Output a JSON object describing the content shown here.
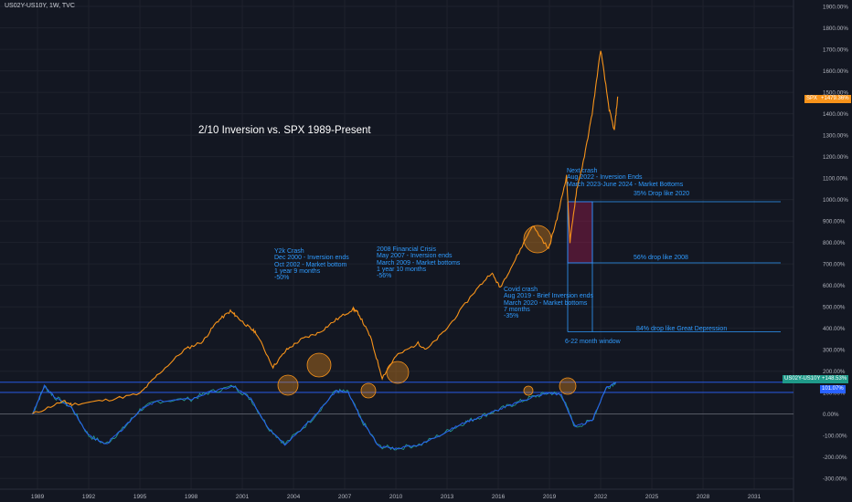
{
  "symbol_title": "US02Y-US10Y, 1W, TVC",
  "chart_title": "2/10 Inversion vs. SPX 1989-Present",
  "colors": {
    "background": "#131722",
    "spx": "#f7931a",
    "spread": "#2962ff",
    "annotation": "#2f9bff",
    "highlight": "#f7931a"
  },
  "badges": {
    "spx_label": "SPX",
    "spx_value": "+1479.36%",
    "spread_label": "US02Y-US10Y",
    "spread_value": "+148.53%",
    "level_value": "101.07%"
  },
  "annotations": {
    "y2k": [
      "Y2k Crash",
      "Dec 2000 - Inversion ends",
      "Oct 2002 - Market bottom",
      "1 year 9 months",
      "-50%"
    ],
    "gfc": [
      "2008 Financial Crisis",
      "May 2007 - Inversion ends",
      "March 2009 - Market bottoms",
      "1 year 10 months",
      "-56%"
    ],
    "covid": [
      "Covid crash",
      "Aug 2019 - Brief Inversion ends",
      "March 2020 - Market bottoms",
      "7 months",
      "-35%"
    ],
    "next": [
      "Next crash",
      "Aug 2022 - Inversion Ends",
      "March 2023-June 2024 - Market Bottoms"
    ],
    "drop35": "35% Drop like 2020",
    "drop56": "56% drop like 2008",
    "drop84": "84% drop like Great Depression",
    "window": "6-22 month window"
  },
  "chart_data": {
    "type": "line",
    "title": "2/10 Inversion vs. SPX 1989-Present",
    "xlabel": "",
    "ylabel": "",
    "x_ticks": [
      "1989",
      "1992",
      "1995",
      "1998",
      "2001",
      "2004",
      "2007",
      "2010",
      "2013",
      "2016",
      "2019",
      "2022",
      "2025",
      "2028",
      "2031"
    ],
    "y_ticks": [
      "1900.00%",
      "1800.00%",
      "1700.00%",
      "1600.00%",
      "1500.00%",
      "1400.00%",
      "1300.00%",
      "1200.00%",
      "1100.00%",
      "1000.00%",
      "900.00%",
      "800.00%",
      "700.00%",
      "600.00%",
      "500.00%",
      "400.00%",
      "300.00%",
      "200.00%",
      "100.00%",
      "0.00%",
      "-100.00%",
      "-200.00%",
      "-300.00%"
    ],
    "ylim": [
      -350,
      1930
    ],
    "xlim": [
      1986.8,
      2033.3
    ],
    "series": [
      {
        "name": "SPX",
        "x": [
          1988.7,
          1990.5,
          1991,
          1993,
          1995,
          1996,
          1997.6,
          1998.7,
          1999.5,
          2000.3,
          2000.6,
          2001.3,
          2001.8,
          2002.8,
          2003.6,
          2004.5,
          2005.5,
          2006.5,
          2007.5,
          2007.8,
          2008.5,
          2009.2,
          2010,
          2011.3,
          2011.8,
          2013,
          2014.5,
          2015.6,
          2016.1,
          2017,
          2018,
          2018.95,
          2019.5,
          2020,
          2020.2,
          2020.6,
          2021,
          2021.5,
          2022,
          2022.5,
          2022.8,
          2023
        ],
        "values": [
          0,
          60,
          45,
          65,
          95,
          180,
          300,
          340,
          430,
          480,
          460,
          410,
          380,
          220,
          300,
          350,
          380,
          440,
          490,
          470,
          360,
          170,
          270,
          330,
          300,
          400,
          560,
          660,
          590,
          720,
          880,
          770,
          930,
          1110,
          800,
          1050,
          1180,
          1400,
          1700,
          1420,
          1320,
          1480
        ]
      },
      {
        "name": "US02Y-US10Y",
        "x": [
          1988.7,
          1989.4,
          1990,
          1991,
          1992,
          1993,
          1994,
          1995,
          1996,
          1998,
          1999,
          2000.5,
          2001.5,
          2002.5,
          2003.5,
          2005,
          2006.5,
          2007.2,
          2008,
          2009,
          2010,
          2011.5,
          2013,
          2014,
          2015,
          2016,
          2017,
          2018,
          2019,
          2019.7,
          2020.5,
          2021.5,
          2022.3,
          2022.9
        ],
        "values": [
          0,
          130,
          80,
          30,
          -100,
          -140,
          -70,
          20,
          60,
          70,
          100,
          130,
          70,
          -60,
          -140,
          -30,
          110,
          100,
          -30,
          -150,
          -160,
          -140,
          -80,
          -40,
          -10,
          20,
          50,
          80,
          100,
          90,
          -60,
          -30,
          120,
          150
        ]
      }
    ],
    "horizontal_levels": [
      148.53,
      101.07
    ]
  }
}
